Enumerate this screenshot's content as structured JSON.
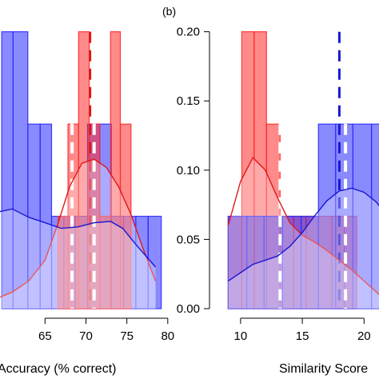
{
  "panel_tag": "(b)",
  "colors": {
    "red": "#ff2a2a",
    "blue": "#2a2aff",
    "red_line": "#e01818",
    "blue_line": "#1818d0"
  },
  "chart_data": [
    {
      "type": "bar",
      "subtype": "histogram-with-density",
      "xlabel": "Accuracy (% correct)",
      "ylabel": "",
      "xlim": [
        59.2,
        80.8
      ],
      "ylim": [
        0,
        0.205
      ],
      "xticks": [
        65,
        70,
        75,
        80
      ],
      "grid": false,
      "series": [
        {
          "color": "red",
          "bars": [
            {
              "x0": 66.6,
              "x1": 67.8,
              "y": 0.0667
            },
            {
              "x0": 67.8,
              "x1": 69.1,
              "y": 0.1333
            },
            {
              "x0": 69.1,
              "x1": 70.4,
              "y": 0.2
            },
            {
              "x0": 70.4,
              "x1": 71.7,
              "y": 0.1333
            },
            {
              "x0": 71.7,
              "x1": 73.0,
              "y": 0.0667
            },
            {
              "x0": 73.0,
              "x1": 74.2,
              "y": 0.2
            },
            {
              "x0": 74.2,
              "x1": 75.5,
              "y": 0.1333
            }
          ],
          "mean": 70.5,
          "density": [
            [
              59.4,
              0.008
            ],
            [
              61,
              0.012
            ],
            [
              63,
              0.02
            ],
            [
              65,
              0.035
            ],
            [
              66.5,
              0.06
            ],
            [
              68,
              0.088
            ],
            [
              69.5,
              0.105
            ],
            [
              71,
              0.108
            ],
            [
              72.5,
              0.102
            ],
            [
              74,
              0.088
            ],
            [
              75.5,
              0.068
            ],
            [
              77,
              0.043
            ],
            [
              78.5,
              0.02
            ]
          ]
        },
        {
          "color": "blue",
          "bars": [
            {
              "x0": 59.7,
              "x1": 61.1,
              "y": 0.2
            },
            {
              "x0": 61.1,
              "x1": 62.9,
              "y": 0.2
            },
            {
              "x0": 62.9,
              "x1": 64.4,
              "y": 0.1333
            },
            {
              "x0": 64.4,
              "x1": 65.8,
              "y": 0.1333
            },
            {
              "x0": 65.8,
              "x1": 67.3,
              "y": 0.0667
            },
            {
              "x0": 67.3,
              "x1": 68.7,
              "y": 0.0667
            },
            {
              "x0": 68.7,
              "x1": 70.2,
              "y": 0.0667
            },
            {
              "x0": 70.2,
              "x1": 71.7,
              "y": 0.1333
            },
            {
              "x0": 71.7,
              "x1": 73.1,
              "y": 0.1333
            },
            {
              "x0": 73.1,
              "x1": 74.6,
              "y": 0.0667
            },
            {
              "x0": 74.6,
              "x1": 76.1,
              "y": 0.0667
            },
            {
              "x0": 76.1,
              "x1": 77.6,
              "y": 0.0667
            },
            {
              "x0": 77.6,
              "x1": 79.2,
              "y": 0.0667
            }
          ],
          "mean": 71.0,
          "density": [
            [
              59.4,
              0.07
            ],
            [
              61,
              0.072
            ],
            [
              63,
              0.066
            ],
            [
              65,
              0.062
            ],
            [
              67,
              0.058
            ],
            [
              69,
              0.059
            ],
            [
              71,
              0.062
            ],
            [
              73,
              0.063
            ],
            [
              74.5,
              0.058
            ],
            [
              76,
              0.047
            ],
            [
              78.5,
              0.03
            ]
          ]
        }
      ],
      "mean_lines": [
        {
          "color": "red",
          "x": 70.5,
          "style": "dashed-dark"
        },
        {
          "color": "red",
          "x": 68.3,
          "style": "dashed-white"
        },
        {
          "color": "blue",
          "x": 71.0,
          "style": "dashed-white"
        }
      ]
    },
    {
      "type": "bar",
      "subtype": "histogram-with-density",
      "xlabel": "Similarity Score",
      "ylabel": "",
      "xlim": [
        8,
        21.6
      ],
      "ylim": [
        0,
        0.205
      ],
      "xticks": [
        10,
        15,
        20
      ],
      "yticks": [
        0.0,
        0.05,
        0.1,
        0.15,
        0.2
      ],
      "ytick_labels": [
        "0.00",
        "0.05",
        "0.10",
        "0.15",
        "0.20"
      ],
      "grid": false,
      "series": [
        {
          "color": "red",
          "bars": [
            {
              "x0": 9.0,
              "x1": 10.1,
              "y": 0.0667
            },
            {
              "x0": 10.1,
              "x1": 11.1,
              "y": 0.2
            },
            {
              "x0": 11.1,
              "x1": 12.1,
              "y": 0.2
            },
            {
              "x0": 12.1,
              "x1": 13.2,
              "y": 0.1333
            },
            {
              "x0": 13.2,
              "x1": 14.3,
              "y": 0.0667
            },
            {
              "x0": 14.3,
              "x1": 15.3,
              "y": 0.0667
            },
            {
              "x0": 15.3,
              "x1": 16.3,
              "y": 0.0667
            },
            {
              "x0": 16.3,
              "x1": 17.4,
              "y": 0.0667
            },
            {
              "x0": 17.4,
              "x1": 18.4,
              "y": 0.0667
            },
            {
              "x0": 18.4,
              "x1": 19.4,
              "y": 0.0667
            }
          ],
          "mean": 13.2,
          "density": [
            [
              9,
              0.06
            ],
            [
              10,
              0.092
            ],
            [
              11,
              0.109
            ],
            [
              12,
              0.1
            ],
            [
              13,
              0.08
            ],
            [
              14,
              0.062
            ],
            [
              15,
              0.053
            ],
            [
              16,
              0.048
            ],
            [
              17,
              0.042
            ],
            [
              18,
              0.035
            ],
            [
              19,
              0.028
            ],
            [
              20,
              0.02
            ],
            [
              21,
              0.012
            ],
            [
              21.5,
              0.008
            ]
          ]
        },
        {
          "color": "blue",
          "bars": [
            {
              "x0": 9.0,
              "x1": 10.5,
              "y": 0.0667
            },
            {
              "x0": 10.5,
              "x1": 11.9,
              "y": 0.0667
            },
            {
              "x0": 11.9,
              "x1": 13.4,
              "y": 0.0667
            },
            {
              "x0": 13.4,
              "x1": 14.9,
              "y": 0.0667
            },
            {
              "x0": 14.9,
              "x1": 16.3,
              "y": 0.0667
            },
            {
              "x0": 16.3,
              "x1": 17.7,
              "y": 0.1333
            },
            {
              "x0": 17.7,
              "x1": 19.1,
              "y": 0.1333
            },
            {
              "x0": 19.1,
              "x1": 20.6,
              "y": 0.1333
            },
            {
              "x0": 20.6,
              "x1": 21.6,
              "y": 0.1333
            }
          ],
          "mean": 18.6,
          "density": [
            [
              9,
              0.02
            ],
            [
              10,
              0.026
            ],
            [
              11,
              0.032
            ],
            [
              12,
              0.035
            ],
            [
              13,
              0.038
            ],
            [
              14,
              0.045
            ],
            [
              15,
              0.055
            ],
            [
              16,
              0.067
            ],
            [
              17,
              0.078
            ],
            [
              18,
              0.085
            ],
            [
              19,
              0.087
            ],
            [
              20,
              0.084
            ],
            [
              21,
              0.077
            ],
            [
              21.6,
              0.07
            ]
          ]
        }
      ],
      "mean_lines": [
        {
          "color": "red",
          "x": 13.2,
          "style": "dashed-white"
        },
        {
          "color": "blue",
          "x": 18.0,
          "style": "dashed-dark"
        },
        {
          "color": "blue",
          "x": 18.5,
          "style": "dashed-white"
        }
      ]
    }
  ]
}
